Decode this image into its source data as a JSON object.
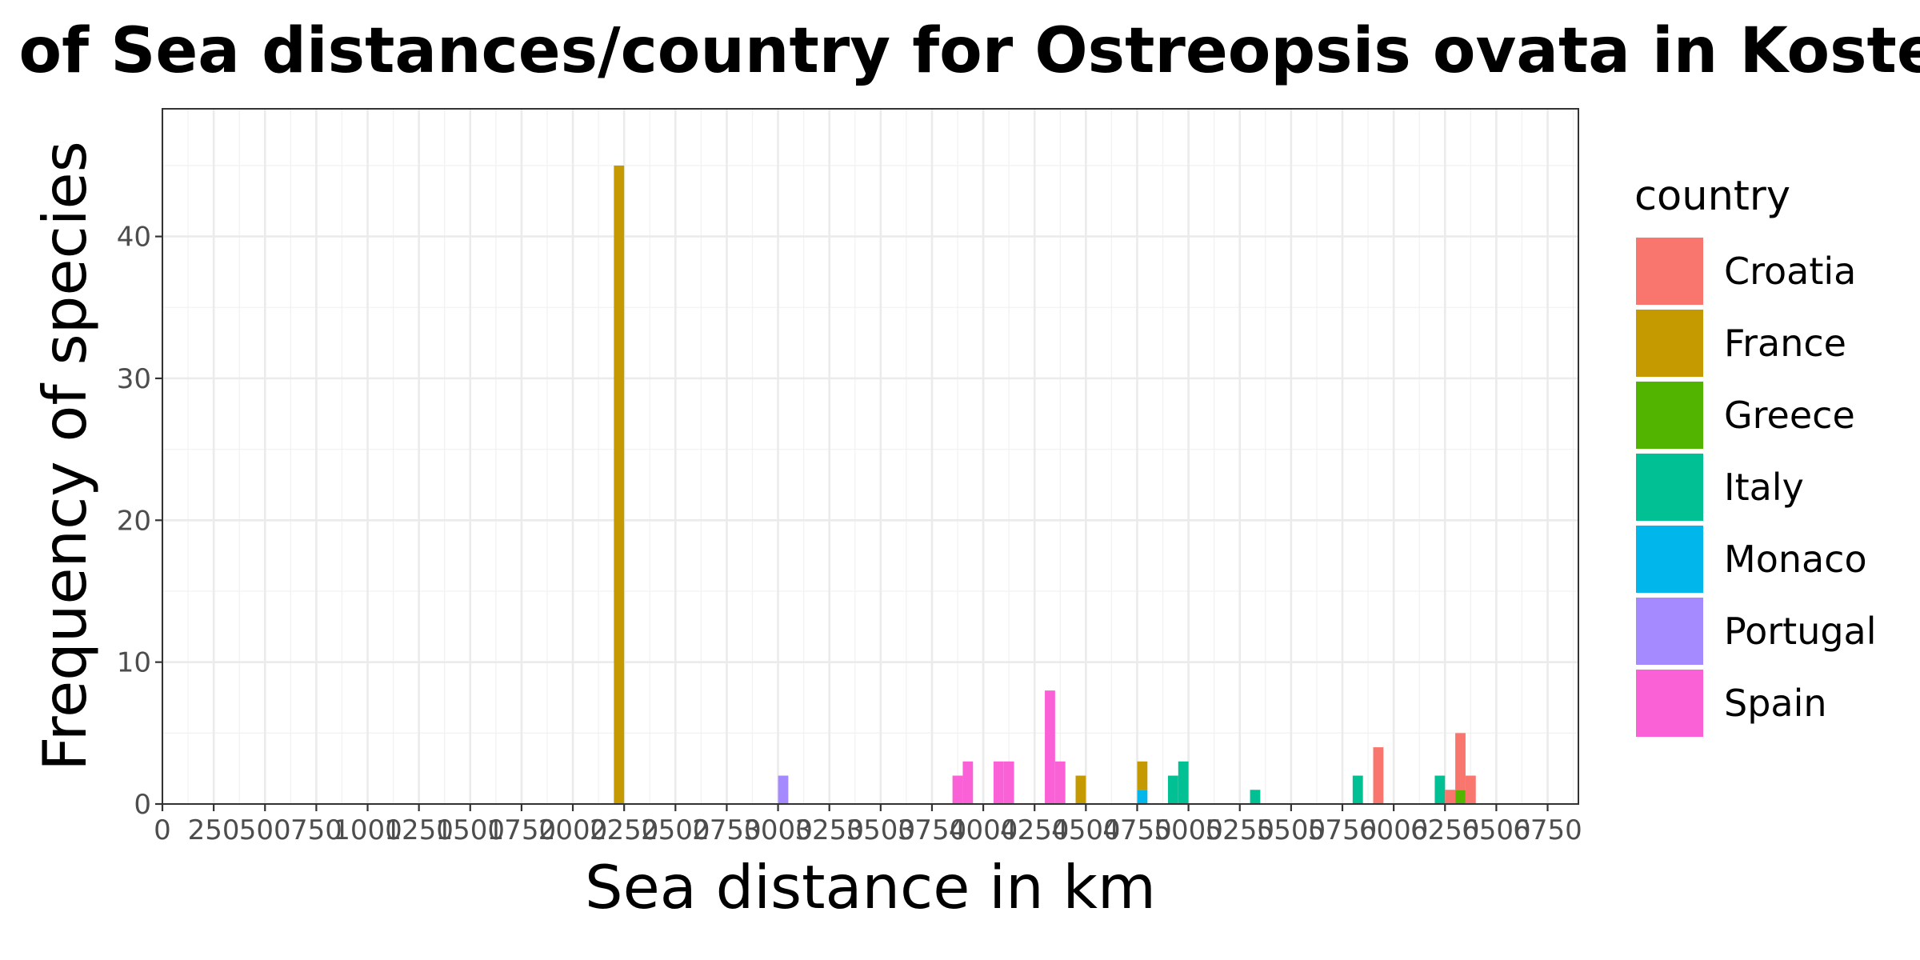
{
  "chart_data": {
    "type": "bar",
    "title": "Frequencies of Sea distances/country for Ostreopsis ovata in Kosterhavet",
    "xlabel": "Sea distance in km",
    "ylabel": "Frequency of species",
    "xlim": [
      0,
      6900
    ],
    "ylim": [
      0,
      49
    ],
    "bin_width": 50,
    "x_ticks": [
      0,
      250,
      500,
      750,
      1000,
      1250,
      1500,
      1750,
      2000,
      2250,
      2500,
      2750,
      3000,
      3250,
      3500,
      3750,
      4000,
      4250,
      4500,
      4750,
      5000,
      5250,
      5500,
      5750,
      6000,
      6250,
      6500,
      6750
    ],
    "x_tick_labels": [
      "0",
      "250",
      "500",
      "750",
      "1000",
      "1250",
      "1500",
      "1750",
      "2000",
      "2250",
      "2500",
      "2750",
      "3000",
      "3250",
      "3500",
      "3750",
      "4000",
      "4250",
      "4500",
      "4750",
      "5000",
      "5250",
      "5500",
      "5750",
      "6000",
      "6250",
      "6500",
      "6750"
    ],
    "y_ticks": [
      0,
      10,
      20,
      30,
      40
    ],
    "y_tick_labels": [
      "0",
      "10",
      "20",
      "30",
      "40"
    ],
    "grid": true,
    "legend_title": "country",
    "legend_position": "right",
    "series": [
      {
        "name": "Croatia",
        "color": "#F8766D",
        "bins": [
          {
            "x": 5900,
            "count": 4
          },
          {
            "x": 6250,
            "count": 1
          },
          {
            "x": 6300,
            "count": 4
          },
          {
            "x": 6350,
            "count": 2
          }
        ]
      },
      {
        "name": "France",
        "color": "#C49A00",
        "bins": [
          {
            "x": 2200,
            "count": 45
          },
          {
            "x": 4450,
            "count": 2
          },
          {
            "x": 4750,
            "count": 2
          }
        ]
      },
      {
        "name": "Greece",
        "color": "#53B400",
        "bins": [
          {
            "x": 6300,
            "count": 1
          }
        ]
      },
      {
        "name": "Italy",
        "color": "#00C094",
        "bins": [
          {
            "x": 4900,
            "count": 2
          },
          {
            "x": 4950,
            "count": 3
          },
          {
            "x": 5300,
            "count": 1
          },
          {
            "x": 5800,
            "count": 2
          },
          {
            "x": 6200,
            "count": 2
          }
        ]
      },
      {
        "name": "Monaco",
        "color": "#00B6EB",
        "bins": [
          {
            "x": 4750,
            "count": 1
          }
        ]
      },
      {
        "name": "Portugal",
        "color": "#A58AFF",
        "bins": [
          {
            "x": 3000,
            "count": 2
          }
        ]
      },
      {
        "name": "Spain",
        "color": "#FB61D7",
        "bins": [
          {
            "x": 3850,
            "count": 2
          },
          {
            "x": 3900,
            "count": 3
          },
          {
            "x": 4050,
            "count": 3
          },
          {
            "x": 4100,
            "count": 3
          },
          {
            "x": 4300,
            "count": 8
          },
          {
            "x": 4350,
            "count": 3
          }
        ]
      }
    ]
  }
}
